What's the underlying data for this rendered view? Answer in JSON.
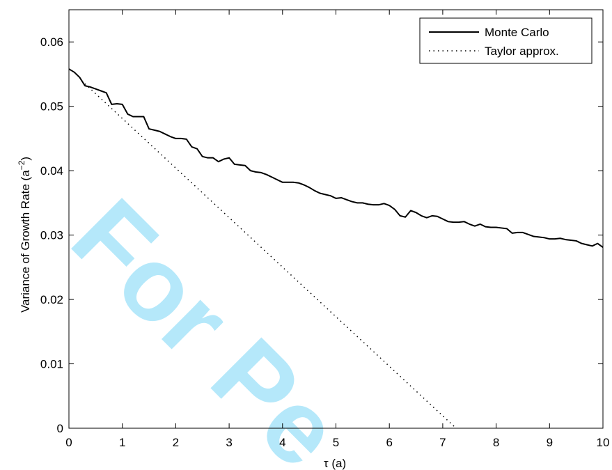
{
  "watermark": {
    "text": "For Pe",
    "color": "#5ccdf4"
  },
  "chart_data": {
    "type": "line",
    "title": "",
    "xlabel": "τ (a)",
    "ylabel_main": "Variance of Growth Rate (a",
    "ylabel_sup": "−2",
    "ylabel_close": ")",
    "xlim": [
      0,
      10
    ],
    "ylim": [
      0,
      0.065
    ],
    "xticks": [
      0,
      1,
      2,
      3,
      4,
      5,
      6,
      7,
      8,
      9,
      10
    ],
    "xtick_labels": [
      "0",
      "1",
      "2",
      "3",
      "4",
      "5",
      "6",
      "7",
      "8",
      "9",
      "10"
    ],
    "yticks": [
      0,
      0.01,
      0.02,
      0.03,
      0.04,
      0.05,
      0.06
    ],
    "ytick_labels": [
      "0",
      "0.01",
      "0.02",
      "0.03",
      "0.04",
      "0.05",
      "0.06"
    ],
    "grid": false,
    "legend": {
      "position": "top-right"
    },
    "series": [
      {
        "name": "Monte Carlo",
        "style": "solid",
        "color": "#000000",
        "x": [
          0,
          0.1,
          0.2,
          0.3,
          0.4,
          0.5,
          0.6,
          0.7,
          0.8,
          0.9,
          1.0,
          1.1,
          1.2,
          1.3,
          1.4,
          1.5,
          1.6,
          1.7,
          1.8,
          1.9,
          2.0,
          2.1,
          2.2,
          2.3,
          2.4,
          2.5,
          2.6,
          2.7,
          2.8,
          2.9,
          3.0,
          3.1,
          3.2,
          3.3,
          3.4,
          3.5,
          3.6,
          3.7,
          3.8,
          3.9,
          4.0,
          4.1,
          4.2,
          4.3,
          4.4,
          4.5,
          4.6,
          4.7,
          4.8,
          4.9,
          5.0,
          5.1,
          5.2,
          5.3,
          5.4,
          5.5,
          5.6,
          5.7,
          5.8,
          5.9,
          6.0,
          6.1,
          6.2,
          6.3,
          6.4,
          6.5,
          6.6,
          6.7,
          6.8,
          6.9,
          7.0,
          7.1,
          7.2,
          7.3,
          7.4,
          7.5,
          7.6,
          7.7,
          7.8,
          7.9,
          8.0,
          8.1,
          8.2,
          8.3,
          8.4,
          8.5,
          8.6,
          8.7,
          8.8,
          8.9,
          9.0,
          9.1,
          9.2,
          9.3,
          9.4,
          9.5,
          9.6,
          9.7,
          9.8,
          9.9,
          10.0
        ],
        "y": [
          0.0558,
          0.0553,
          0.0545,
          0.0532,
          0.053,
          0.0527,
          0.0524,
          0.0521,
          0.0503,
          0.0504,
          0.0503,
          0.0488,
          0.0484,
          0.0484,
          0.0484,
          0.0465,
          0.0463,
          0.0461,
          0.0457,
          0.0453,
          0.045,
          0.045,
          0.0449,
          0.0437,
          0.0434,
          0.0422,
          0.042,
          0.042,
          0.0414,
          0.0418,
          0.042,
          0.041,
          0.0409,
          0.0408,
          0.04,
          0.0398,
          0.0397,
          0.0394,
          0.039,
          0.0386,
          0.0382,
          0.0382,
          0.0382,
          0.0381,
          0.0378,
          0.0374,
          0.0369,
          0.0365,
          0.0363,
          0.0361,
          0.0357,
          0.0358,
          0.0355,
          0.0352,
          0.035,
          0.035,
          0.0348,
          0.0347,
          0.0347,
          0.0349,
          0.0346,
          0.034,
          0.033,
          0.0328,
          0.0338,
          0.0335,
          0.033,
          0.0327,
          0.033,
          0.0329,
          0.0325,
          0.0321,
          0.032,
          0.032,
          0.0321,
          0.0317,
          0.0314,
          0.0317,
          0.0313,
          0.0312,
          0.0312,
          0.0311,
          0.031,
          0.0303,
          0.0304,
          0.0304,
          0.0301,
          0.0298,
          0.0297,
          0.0296,
          0.0294,
          0.0294,
          0.0295,
          0.0293,
          0.0292,
          0.0291,
          0.0287,
          0.0285,
          0.0283,
          0.0287,
          0.0281
        ]
      },
      {
        "name": "Taylor approx.",
        "style": "dotted",
        "color": "#000000",
        "x": [
          0.3,
          7.25
        ],
        "y": [
          0.0535,
          0.0
        ]
      }
    ]
  }
}
